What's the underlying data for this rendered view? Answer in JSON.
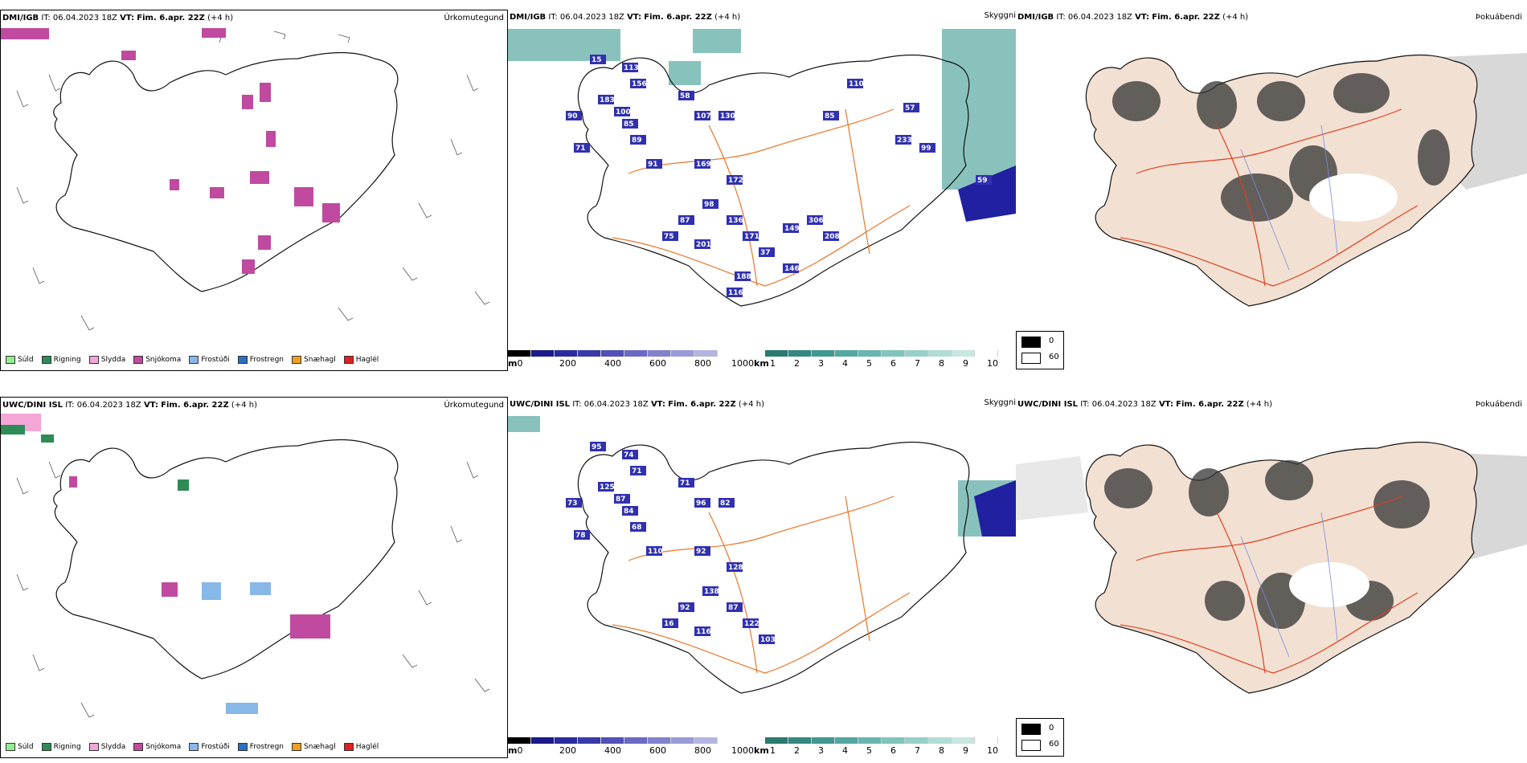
{
  "rows": [
    {
      "model": "DMI/IGB",
      "it_label": "IT:",
      "it_value": "06.04.2023 18Z",
      "vt_label": "VT:",
      "vt_value": "Fim. 6.apr. 22Z",
      "offset": "(+4 h)",
      "visibility_labels": [
        "15",
        "113",
        "156",
        "183",
        "90",
        "100",
        "85",
        "89",
        "71",
        "91",
        "58",
        "107",
        "130",
        "169",
        "172",
        "98",
        "87",
        "75",
        "201",
        "136",
        "171",
        "37",
        "188",
        "116",
        "149",
        "306",
        "208",
        "146",
        "110",
        "85",
        "57",
        "99",
        "233",
        "59"
      ],
      "header_strings": {
        "precip": "Úrkomutegund",
        "vis": "Skyggni",
        "fog": "Þokuábendi"
      }
    },
    {
      "model": "UWC/DINI ISL",
      "it_label": "IT:",
      "it_value": "06.04.2023 18Z",
      "vt_label": "VT:",
      "vt_value": "Fim. 6.apr. 22Z",
      "offset": "(+4 h)",
      "visibility_labels": [
        "95",
        "74",
        "71",
        "125",
        "73",
        "87",
        "84",
        "68",
        "78",
        "110",
        "71",
        "96",
        "82",
        "92",
        "128",
        "138",
        "92",
        "16",
        "116",
        "87",
        "122",
        "103"
      ],
      "header_strings": {
        "precip": "Úrkomutegund",
        "vis": "Skyggni",
        "fog": "Þokuábendi"
      }
    }
  ],
  "precip_legend": [
    {
      "label": "Súld",
      "color": "#90ee90"
    },
    {
      "label": "Rigning",
      "color": "#2e8b57"
    },
    {
      "label": "Slydda",
      "color": "#f4a6d7"
    },
    {
      "label": "Snjókoma",
      "color": "#c04aa0"
    },
    {
      "label": "Frostúði",
      "color": "#87b8e8"
    },
    {
      "label": "Frostregn",
      "color": "#2a70c0"
    },
    {
      "label": "Snæhagl",
      "color": "#f0a020"
    },
    {
      "label": "Haglél",
      "color": "#e02020"
    }
  ],
  "cbar_m": {
    "unit": "m",
    "ticks": [
      "0",
      "200",
      "400",
      "600",
      "800",
      "1000"
    ]
  },
  "cbar_km": {
    "unit": "km",
    "ticks": [
      "1",
      "2",
      "3",
      "4",
      "5",
      "6",
      "7",
      "8",
      "9",
      "10"
    ]
  },
  "fog_legend": {
    "black": "0",
    "white": "60"
  },
  "colors": {
    "coast": "#111111",
    "roads": "#e8762a",
    "snow": "#c04aa0",
    "vis_blue": "#2a2aa8",
    "vis_teal": "#3a9a90",
    "land_fog": "#f2e0d2",
    "rivers": "#7a8ce0"
  }
}
